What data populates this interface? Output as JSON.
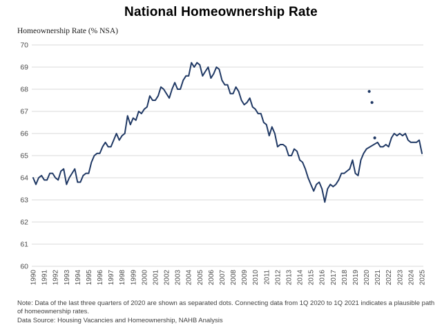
{
  "page": {
    "title": "National Homeownership Rate",
    "y_axis_caption": "Homeownership Rate (% NSA)",
    "note": "Note: Data of the last three quarters of 2020 are shown as separated dots. Connecting data from 1Q 2020 to 1Q 2021 indicates a plausible path of homeownership rates.",
    "source": "Data Source: Housing Vacancies and Homeownership, NAHB Analysis"
  },
  "chart_data": {
    "type": "line",
    "title": "National Homeownership Rate",
    "ylabel": "Homeownership Rate (% NSA)",
    "xlabel": "",
    "ylim": [
      60,
      70
    ],
    "y_ticks": [
      60,
      61,
      62,
      63,
      64,
      65,
      66,
      67,
      68,
      69,
      70
    ],
    "grid": "horizontal",
    "legend": "none",
    "frequency": "quarterly",
    "x_start": "1990 Q1",
    "x_end": "2025 Q1",
    "x_tick_labels": [
      "1990",
      "1991",
      "1992",
      "1993",
      "1994",
      "1995",
      "1996",
      "1997",
      "1998",
      "1999",
      "2000",
      "2001",
      "2002",
      "2003",
      "2004",
      "2005",
      "2006",
      "2007",
      "2008",
      "2009",
      "2010",
      "2011",
      "2012",
      "2013",
      "2014",
      "2015",
      "2016",
      "2017",
      "2018",
      "2019",
      "2020",
      "2021",
      "2022",
      "2023",
      "2024",
      "2025"
    ],
    "series": [
      {
        "name": "Homeownership Rate (% NSA)",
        "note": "2020 Q2-Q4 omitted from line; line connects 1Q 2020 to 1Q 2021",
        "values": [
          64.0,
          63.7,
          64.0,
          64.1,
          63.9,
          63.9,
          64.2,
          64.2,
          64.0,
          63.9,
          64.3,
          64.4,
          63.7,
          64.0,
          64.2,
          64.4,
          63.8,
          63.8,
          64.1,
          64.2,
          64.2,
          64.7,
          65.0,
          65.1,
          65.1,
          65.4,
          65.6,
          65.4,
          65.4,
          65.7,
          66.0,
          65.7,
          65.9,
          66.0,
          66.8,
          66.4,
          66.7,
          66.6,
          67.0,
          66.9,
          67.1,
          67.2,
          67.7,
          67.5,
          67.5,
          67.7,
          68.1,
          68.0,
          67.8,
          67.6,
          68.0,
          68.3,
          68.0,
          68.0,
          68.4,
          68.6,
          68.6,
          69.2,
          69.0,
          69.2,
          69.1,
          68.6,
          68.8,
          69.0,
          68.5,
          68.7,
          69.0,
          68.9,
          68.4,
          68.2,
          68.2,
          67.8,
          67.8,
          68.1,
          67.9,
          67.5,
          67.3,
          67.4,
          67.6,
          67.2,
          67.1,
          66.9,
          66.9,
          66.5,
          66.4,
          65.9,
          66.3,
          66.0,
          65.4,
          65.5,
          65.5,
          65.4,
          65.0,
          65.0,
          65.3,
          65.2,
          64.8,
          64.7,
          64.4,
          64.0,
          63.7,
          63.4,
          63.7,
          63.8,
          63.5,
          62.9,
          63.5,
          63.7,
          63.6,
          63.7,
          63.9,
          64.2,
          64.2,
          64.3,
          64.4,
          64.8,
          64.2,
          64.1,
          64.8,
          65.1,
          65.3,
          null,
          null,
          null,
          65.6,
          65.4,
          65.4,
          65.5,
          65.4,
          65.8,
          66.0,
          65.9,
          66.0,
          65.9,
          66.0,
          65.7,
          65.6,
          65.6,
          65.6,
          65.7,
          65.1
        ]
      }
    ],
    "dots": [
      {
        "quarter": "2020 Q2",
        "index": 121,
        "value": 67.9
      },
      {
        "quarter": "2020 Q3",
        "index": 122,
        "value": 67.4
      },
      {
        "quarter": "2020 Q4",
        "index": 123,
        "value": 65.8
      }
    ],
    "colors": {
      "line": "#1f3864",
      "dot": "#1f3864",
      "grid": "#d9d9d9",
      "tick_text": "#4d4d4d",
      "title_text": "#000000"
    }
  }
}
